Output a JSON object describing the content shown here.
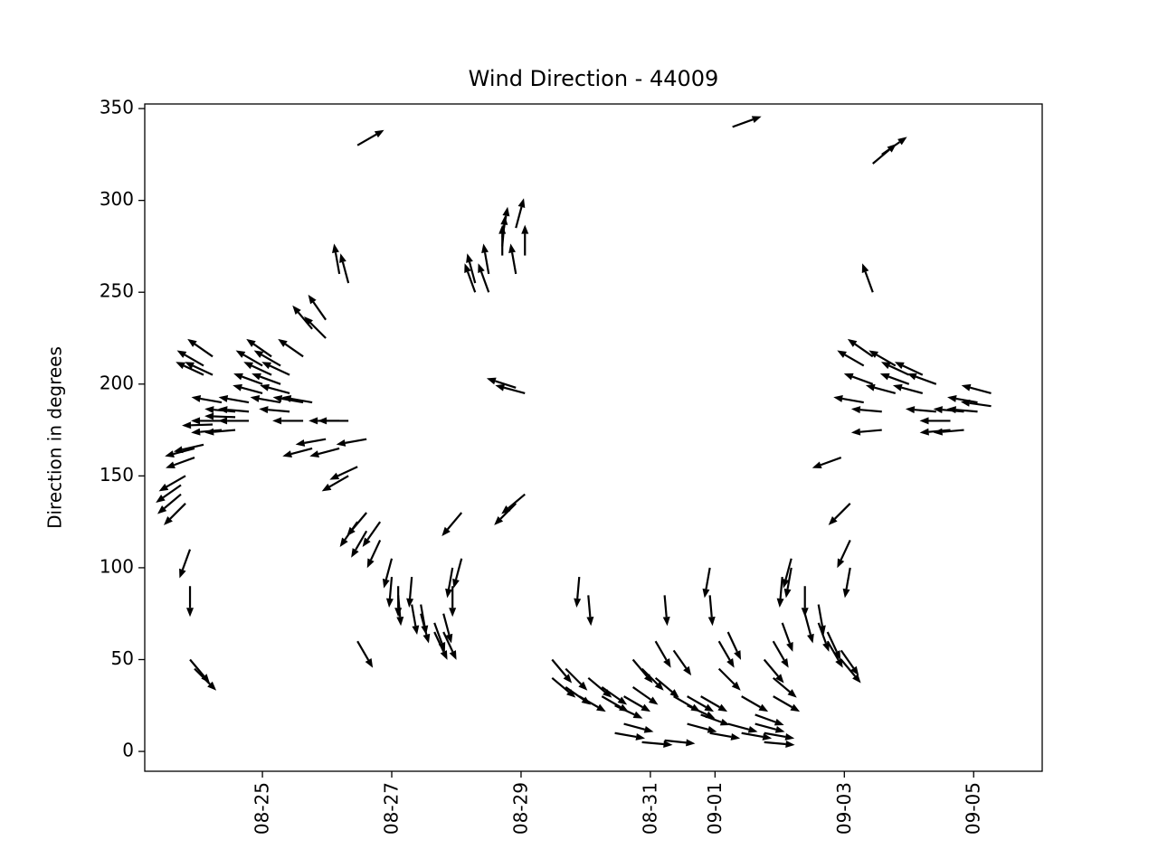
{
  "chart_data": {
    "type": "quiver",
    "title": "Wind Direction - 44009",
    "ylabel": "Direction in degrees",
    "color": "#000000",
    "x": [
      23.74,
      23.74,
      23.81,
      23.81,
      23.88,
      23.88,
      23.88,
      23.95,
      23.95,
      23.95,
      24.09,
      24.09,
      24.09,
      24.23,
      24.23,
      24.23,
      24.37,
      24.37,
      24.37,
      24.58,
      24.58,
      24.58,
      24.79,
      24.79,
      24.79,
      25.0,
      25.0,
      25.0,
      25.14,
      25.14,
      25.28,
      25.28,
      25.28,
      25.42,
      25.42,
      25.42,
      25.63,
      25.63,
      25.63,
      25.77,
      25.77,
      25.77,
      25.98,
      25.98,
      25.98,
      26.19,
      26.19,
      26.19,
      26.33,
      26.33,
      26.33,
      26.47,
      26.47,
      26.47,
      26.47,
      26.61,
      26.61,
      26.61,
      26.82,
      26.82,
      27.0,
      27.0,
      27.1,
      27.1,
      27.31,
      27.31,
      27.45,
      27.45,
      27.66,
      27.66,
      27.8,
      27.8,
      27.94,
      27.94,
      28.08,
      28.08,
      28.29,
      28.29,
      28.5,
      28.5,
      28.71,
      28.71,
      28.71,
      28.92,
      28.92,
      28.92,
      28.92,
      29.06,
      29.06,
      29.06,
      29.48,
      29.48,
      29.69,
      29.69,
      29.9,
      29.9,
      30.04,
      30.04,
      30.25,
      30.25,
      30.45,
      30.45,
      30.59,
      30.59,
      30.73,
      30.73,
      30.87,
      30.87,
      31.08,
      31.08,
      31.22,
      31.22,
      31.36,
      31.36,
      31.57,
      31.57,
      31.57,
      31.78,
      31.78,
      31.92,
      31.92,
      31.92,
      32.06,
      32.06,
      32.2,
      32.2,
      32.27,
      32.41,
      32.41,
      32.62,
      32.62,
      32.76,
      32.76,
      32.76,
      32.9,
      32.9,
      32.9,
      33.04,
      33.04,
      33.18,
      33.18,
      33.39,
      33.39,
      33.6,
      33.6,
      33.74,
      33.74,
      33.95,
      33.95,
      33.95,
      34.09,
      34.09,
      34.09,
      34.3,
      34.3,
      34.44,
      34.44,
      34.44,
      34.44,
      34.58,
      34.58,
      34.58,
      34.79,
      34.79,
      35.0,
      35.0,
      35.21,
      35.21,
      35.42,
      35.42,
      35.64,
      35.64,
      35.85,
      35.85,
      36.06,
      36.06,
      36.27,
      36.27
    ],
    "values": [
      140,
      145,
      135,
      150,
      110,
      90,
      50,
      160,
      165,
      45,
      205,
      210,
      167,
      215,
      205,
      178,
      175,
      190,
      180,
      182,
      185,
      175,
      185,
      190,
      180,
      195,
      210,
      200,
      215,
      205,
      210,
      200,
      190,
      205,
      195,
      185,
      190,
      180,
      215,
      165,
      190,
      230,
      225,
      235,
      170,
      260,
      165,
      180,
      255,
      150,
      180,
      330,
      155,
      60,
      125,
      130,
      120,
      170,
      125,
      115,
      105,
      95,
      90,
      85,
      95,
      80,
      75,
      80,
      65,
      70,
      75,
      65,
      90,
      100,
      105,
      130,
      250,
      255,
      260,
      250,
      275,
      270,
      280,
      285,
      260,
      198,
      135,
      270,
      195,
      140,
      40,
      50,
      45,
      35,
      95,
      30,
      85,
      40,
      30,
      35,
      25,
      10,
      30,
      15,
      50,
      35,
      45,
      5,
      40,
      60,
      85,
      6,
      30,
      55,
      25,
      30,
      15,
      20,
      30,
      100,
      85,
      10,
      60,
      45,
      65,
      15,
      340,
      30,
      10,
      15,
      20,
      50,
      10,
      5,
      40,
      60,
      30,
      95,
      70,
      100,
      105,
      90,
      75,
      80,
      70,
      65,
      60,
      55,
      50,
      160,
      100,
      115,
      135,
      210,
      190,
      215,
      200,
      250,
      320,
      185,
      175,
      325,
      195,
      210,
      200,
      205,
      195,
      205,
      200,
      185,
      175,
      180,
      185,
      175,
      190,
      185,
      195,
      188
    ],
    "xlim": [
      23.18,
      37.06
    ],
    "xticks": [
      {
        "value": 25,
        "label": "08-25"
      },
      {
        "value": 27,
        "label": "08-27"
      },
      {
        "value": 29,
        "label": "08-29"
      },
      {
        "value": 31,
        "label": "08-31"
      },
      {
        "value": 32,
        "label": "09-01"
      },
      {
        "value": 34,
        "label": "09-03"
      },
      {
        "value": 36,
        "label": "09-05"
      }
    ],
    "ylim": [
      -10.8,
      352.5
    ],
    "yticks": [
      0,
      50,
      100,
      150,
      200,
      250,
      300,
      350
    ]
  }
}
